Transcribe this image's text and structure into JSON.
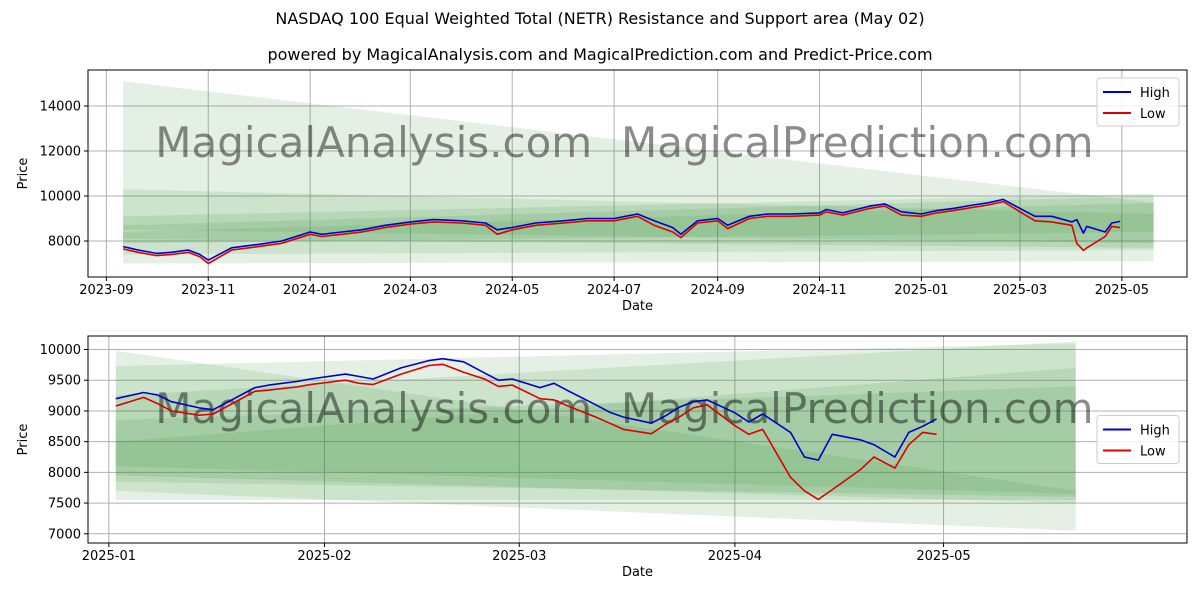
{
  "header": {
    "title": "NASDAQ 100 Equal Weighted Total (NETR) Resistance and Support area (May 02)",
    "subtitle": "powered by MagicalAnalysis.com and MagicalPrediction.com and Predict-Price.com"
  },
  "colors": {
    "high": "#0000cc",
    "low": "#dd0000",
    "band": "#2e8b2e",
    "grid": "#b0b0b0"
  },
  "chart_data": [
    {
      "type": "line",
      "xlabel": "Date",
      "ylabel": "Price",
      "xlim": [
        "2023-08-21",
        "2025-06-09"
      ],
      "ylim": [
        6400,
        15600
      ],
      "x_ticks": [
        "2023-09",
        "2023-11",
        "2024-01",
        "2024-03",
        "2024-05",
        "2024-07",
        "2024-09",
        "2024-11",
        "2025-01",
        "2025-03",
        "2025-05"
      ],
      "y_ticks": [
        8000,
        10000,
        12000,
        14000
      ],
      "grid": true,
      "legend": {
        "position": "top-right",
        "entries": [
          "High",
          "Low"
        ]
      },
      "watermarks": [
        "MagicalAnalysis.com",
        "MagicalPrediction.com"
      ],
      "bands": [
        {
          "start": [
            "2023-09-11",
            15100,
            8500
          ],
          "end": [
            "2025-05-20",
            9700,
            7900
          ]
        },
        {
          "start": [
            "2023-09-11",
            10300,
            7900
          ],
          "end": [
            "2025-05-20",
            9200,
            8400
          ]
        },
        {
          "start": [
            "2023-09-11",
            9100,
            8100
          ],
          "end": [
            "2025-05-20",
            10100,
            7700
          ]
        },
        {
          "start": [
            "2023-09-11",
            8700,
            7400
          ],
          "end": [
            "2025-05-20",
            10000,
            7600
          ]
        },
        {
          "start": [
            "2023-09-11",
            8400,
            7000
          ],
          "end": [
            "2025-05-20",
            9700,
            7100
          ]
        }
      ],
      "series": [
        {
          "name": "High",
          "x": [
            "2023-09-11",
            "2023-09-20",
            "2023-10-01",
            "2023-10-10",
            "2023-10-20",
            "2023-10-27",
            "2023-11-01",
            "2023-11-15",
            "2023-12-01",
            "2023-12-15",
            "2024-01-01",
            "2024-01-08",
            "2024-01-20",
            "2024-02-01",
            "2024-02-15",
            "2024-03-01",
            "2024-03-15",
            "2024-04-01",
            "2024-04-15",
            "2024-04-22",
            "2024-05-01",
            "2024-05-15",
            "2024-06-01",
            "2024-06-15",
            "2024-07-01",
            "2024-07-15",
            "2024-07-25",
            "2024-08-05",
            "2024-08-10",
            "2024-08-20",
            "2024-09-01",
            "2024-09-07",
            "2024-09-20",
            "2024-10-01",
            "2024-10-15",
            "2024-11-01",
            "2024-11-05",
            "2024-11-15",
            "2024-12-01",
            "2024-12-10",
            "2024-12-20",
            "2025-01-01",
            "2025-01-10",
            "2025-01-20",
            "2025-02-01",
            "2025-02-10",
            "2025-02-19",
            "2025-03-01",
            "2025-03-10",
            "2025-03-20",
            "2025-04-01",
            "2025-04-04",
            "2025-04-08",
            "2025-04-10",
            "2025-04-21",
            "2025-04-25",
            "2025-04-30"
          ],
          "values": [
            7750,
            7600,
            7450,
            7500,
            7600,
            7400,
            7150,
            7700,
            7850,
            8000,
            8400,
            8300,
            8400,
            8500,
            8700,
            8850,
            8950,
            8900,
            8800,
            8500,
            8600,
            8800,
            8900,
            9000,
            9000,
            9200,
            8900,
            8600,
            8300,
            8900,
            9000,
            8700,
            9100,
            9200,
            9200,
            9250,
            9400,
            9250,
            9550,
            9650,
            9300,
            9200,
            9350,
            9450,
            9600,
            9700,
            9850,
            9450,
            9100,
            9100,
            8850,
            8950,
            8350,
            8650,
            8400,
            8800,
            8870
          ]
        },
        {
          "name": "Low",
          "x": [
            "2023-09-11",
            "2023-09-20",
            "2023-10-01",
            "2023-10-10",
            "2023-10-20",
            "2023-10-27",
            "2023-11-01",
            "2023-11-15",
            "2023-12-01",
            "2023-12-15",
            "2024-01-01",
            "2024-01-08",
            "2024-01-20",
            "2024-02-01",
            "2024-02-15",
            "2024-03-01",
            "2024-03-15",
            "2024-04-01",
            "2024-04-15",
            "2024-04-22",
            "2024-05-01",
            "2024-05-15",
            "2024-06-01",
            "2024-06-15",
            "2024-07-01",
            "2024-07-15",
            "2024-07-25",
            "2024-08-05",
            "2024-08-10",
            "2024-08-20",
            "2024-09-01",
            "2024-09-07",
            "2024-09-20",
            "2024-10-01",
            "2024-10-15",
            "2024-11-01",
            "2024-11-05",
            "2024-11-15",
            "2024-12-01",
            "2024-12-10",
            "2024-12-20",
            "2025-01-01",
            "2025-01-10",
            "2025-01-20",
            "2025-02-01",
            "2025-02-10",
            "2025-02-19",
            "2025-03-01",
            "2025-03-10",
            "2025-03-20",
            "2025-04-01",
            "2025-04-04",
            "2025-04-08",
            "2025-04-10",
            "2025-04-21",
            "2025-04-25",
            "2025-04-30"
          ],
          "values": [
            7650,
            7500,
            7350,
            7400,
            7500,
            7300,
            7000,
            7600,
            7750,
            7900,
            8300,
            8200,
            8300,
            8400,
            8600,
            8750,
            8850,
            8800,
            8700,
            8300,
            8500,
            8700,
            8800,
            8900,
            8900,
            9100,
            8700,
            8400,
            8150,
            8800,
            8900,
            8550,
            9000,
            9100,
            9100,
            9150,
            9300,
            9150,
            9450,
            9550,
            9150,
            9100,
            9250,
            9350,
            9500,
            9600,
            9750,
            9300,
            8900,
            8850,
            8700,
            7900,
            7580,
            7700,
            8200,
            8650,
            8600
          ]
        }
      ]
    },
    {
      "type": "line",
      "xlabel": "Date",
      "ylabel": "Price",
      "xlim": [
        "2024-12-29",
        "2025-06-05"
      ],
      "ylim": [
        6850,
        10220
      ],
      "x_ticks": [
        "2025-01",
        "2025-02",
        "2025-03",
        "2025-04",
        "2025-05"
      ],
      "y_ticks": [
        7000,
        7500,
        8000,
        8500,
        9000,
        9500,
        10000
      ],
      "grid": true,
      "legend": {
        "position": "center-right",
        "entries": [
          "High",
          "Low"
        ]
      },
      "watermarks": [
        "MagicalAnalysis.com",
        "MagicalPrediction.com"
      ],
      "bands": [
        {
          "start": [
            "2025-01-02",
            9730,
            8100
          ],
          "end": [
            "2025-05-20",
            10100,
            7650
          ]
        },
        {
          "start": [
            "2025-01-02",
            9980,
            7700
          ],
          "end": [
            "2025-05-20",
            7700,
            7050
          ]
        },
        {
          "start": [
            "2025-01-02",
            9250,
            7550
          ],
          "end": [
            "2025-05-20",
            10130,
            7550
          ]
        },
        {
          "start": [
            "2025-01-02",
            8850,
            7950
          ],
          "end": [
            "2025-05-20",
            9400,
            7500
          ]
        },
        {
          "start": [
            "2025-01-02",
            8500,
            7850
          ],
          "end": [
            "2025-05-20",
            9700,
            7600
          ]
        }
      ],
      "series": [
        {
          "name": "High",
          "x": [
            "2025-01-02",
            "2025-01-06",
            "2025-01-08",
            "2025-01-10",
            "2025-01-14",
            "2025-01-16",
            "2025-01-22",
            "2025-01-24",
            "2025-01-28",
            "2025-01-30",
            "2025-02-04",
            "2025-02-06",
            "2025-02-08",
            "2025-02-12",
            "2025-02-16",
            "2025-02-18",
            "2025-02-21",
            "2025-02-24",
            "2025-02-26",
            "2025-02-28",
            "2025-03-04",
            "2025-03-06",
            "2025-03-08",
            "2025-03-12",
            "2025-03-14",
            "2025-03-16",
            "2025-03-20",
            "2025-03-22",
            "2025-03-24",
            "2025-03-26",
            "2025-03-28",
            "2025-04-01",
            "2025-04-03",
            "2025-04-05",
            "2025-04-09",
            "2025-04-11",
            "2025-04-13",
            "2025-04-15",
            "2025-04-19",
            "2025-04-21",
            "2025-04-24",
            "2025-04-26",
            "2025-04-28",
            "2025-04-30"
          ],
          "values": [
            9200,
            9300,
            9260,
            9150,
            9050,
            9020,
            9380,
            9420,
            9480,
            9520,
            9600,
            9560,
            9520,
            9700,
            9820,
            9850,
            9800,
            9620,
            9500,
            9520,
            9380,
            9450,
            9330,
            9100,
            8980,
            8900,
            8800,
            8920,
            9060,
            9150,
            9180,
            8970,
            8820,
            8950,
            8650,
            8250,
            8200,
            8620,
            8530,
            8450,
            8250,
            8650,
            8750,
            8870
          ]
        },
        {
          "name": "Low",
          "x": [
            "2025-01-02",
            "2025-01-06",
            "2025-01-08",
            "2025-01-10",
            "2025-01-14",
            "2025-01-16",
            "2025-01-22",
            "2025-01-24",
            "2025-01-28",
            "2025-01-30",
            "2025-02-04",
            "2025-02-06",
            "2025-02-08",
            "2025-02-12",
            "2025-02-16",
            "2025-02-18",
            "2025-02-21",
            "2025-02-24",
            "2025-02-26",
            "2025-02-28",
            "2025-03-04",
            "2025-03-06",
            "2025-03-08",
            "2025-03-12",
            "2025-03-14",
            "2025-03-16",
            "2025-03-20",
            "2025-03-22",
            "2025-03-24",
            "2025-03-26",
            "2025-03-28",
            "2025-04-01",
            "2025-04-03",
            "2025-04-05",
            "2025-04-09",
            "2025-04-11",
            "2025-04-13",
            "2025-04-15",
            "2025-04-19",
            "2025-04-21",
            "2025-04-24",
            "2025-04-26",
            "2025-04-28",
            "2025-04-30"
          ],
          "values": [
            9080,
            9220,
            9120,
            9000,
            8930,
            8950,
            9320,
            9340,
            9390,
            9430,
            9500,
            9450,
            9430,
            9600,
            9740,
            9760,
            9630,
            9520,
            9400,
            9420,
            9200,
            9180,
            9080,
            8900,
            8800,
            8700,
            8630,
            8780,
            8900,
            9050,
            9100,
            8760,
            8620,
            8700,
            7920,
            7700,
            7560,
            7720,
            8040,
            8250,
            8070,
            8450,
            8650,
            8620
          ]
        }
      ]
    }
  ]
}
